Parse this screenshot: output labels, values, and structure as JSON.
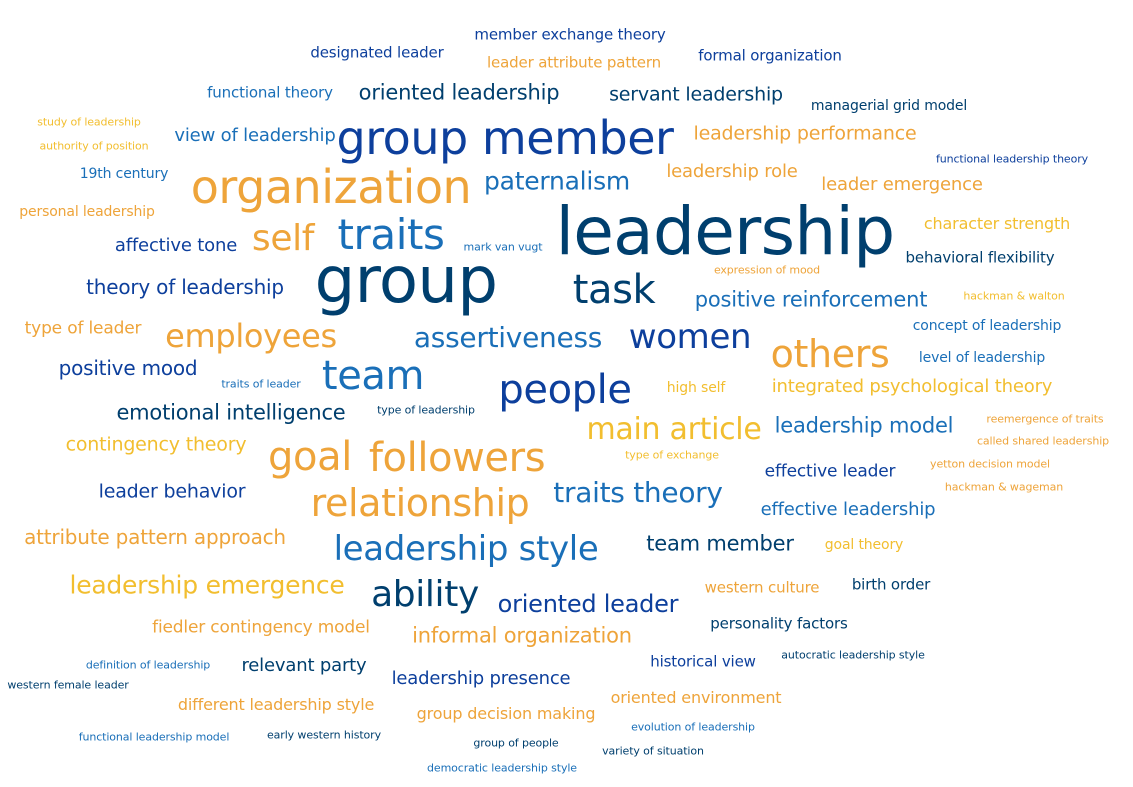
{
  "palette": {
    "navy": "#003f6e",
    "blue": "#0d3f9c",
    "mid_blue": "#1a6fb8",
    "orange": "#eea43a",
    "yellow": "#f2be2f"
  },
  "words": [
    {
      "text": "leadership",
      "color": "navy"
    },
    {
      "text": "group",
      "color": "navy"
    },
    {
      "text": "group member",
      "color": "blue"
    },
    {
      "text": "organization",
      "color": "orange"
    },
    {
      "text": "traits",
      "color": "mid_blue"
    },
    {
      "text": "self",
      "color": "orange"
    },
    {
      "text": "task",
      "color": "navy"
    },
    {
      "text": "others",
      "color": "orange"
    },
    {
      "text": "women",
      "color": "blue"
    },
    {
      "text": "people",
      "color": "blue"
    },
    {
      "text": "team",
      "color": "mid_blue"
    },
    {
      "text": "employees",
      "color": "orange"
    },
    {
      "text": "goal",
      "color": "orange"
    },
    {
      "text": "followers",
      "color": "orange"
    },
    {
      "text": "relationship",
      "color": "orange"
    },
    {
      "text": "leadership style",
      "color": "mid_blue"
    },
    {
      "text": "ability",
      "color": "navy"
    },
    {
      "text": "main article",
      "color": "yellow"
    },
    {
      "text": "traits theory",
      "color": "mid_blue"
    },
    {
      "text": "assertiveness",
      "color": "mid_blue"
    },
    {
      "text": "paternalism",
      "color": "mid_blue"
    },
    {
      "text": "leadership emergence",
      "color": "yellow"
    },
    {
      "text": "oriented leader",
      "color": "blue"
    },
    {
      "text": "positive reinforcement",
      "color": "mid_blue"
    },
    {
      "text": "emotional intelligence",
      "color": "navy"
    },
    {
      "text": "team member",
      "color": "navy"
    },
    {
      "text": "leadership model",
      "color": "mid_blue"
    },
    {
      "text": "attribute pattern approach",
      "color": "orange"
    },
    {
      "text": "oriented leadership",
      "color": "navy"
    },
    {
      "text": "leadership performance",
      "color": "orange"
    },
    {
      "text": "leader emergence",
      "color": "orange"
    },
    {
      "text": "leadership role",
      "color": "orange"
    },
    {
      "text": "theory of leadership",
      "color": "blue"
    },
    {
      "text": "informal organization",
      "color": "orange"
    },
    {
      "text": "positive mood",
      "color": "blue"
    },
    {
      "text": "servant leadership",
      "color": "navy"
    },
    {
      "text": "contingency theory",
      "color": "yellow"
    },
    {
      "text": "leader behavior",
      "color": "blue"
    },
    {
      "text": "integrated psychological theory",
      "color": "yellow"
    },
    {
      "text": "view of leadership",
      "color": "mid_blue"
    },
    {
      "text": "affective tone",
      "color": "blue"
    },
    {
      "text": "fiedler contingency model",
      "color": "orange"
    },
    {
      "text": "leadership presence",
      "color": "blue"
    },
    {
      "text": "effective leadership",
      "color": "mid_blue"
    },
    {
      "text": "effective leader",
      "color": "blue"
    },
    {
      "text": "relevant party",
      "color": "navy"
    },
    {
      "text": "type of leader",
      "color": "orange"
    },
    {
      "text": "different leadership style",
      "color": "orange"
    },
    {
      "text": "group decision making",
      "color": "orange"
    },
    {
      "text": "oriented environment",
      "color": "orange"
    },
    {
      "text": "character strength",
      "color": "yellow"
    },
    {
      "text": "personality factors",
      "color": "navy"
    },
    {
      "text": "western culture",
      "color": "orange"
    },
    {
      "text": "birth order",
      "color": "navy"
    },
    {
      "text": "historical view",
      "color": "blue"
    },
    {
      "text": "behavioral flexibility",
      "color": "navy"
    },
    {
      "text": "designated leader",
      "color": "blue"
    },
    {
      "text": "member exchange theory",
      "color": "blue"
    },
    {
      "text": "formal organization",
      "color": "blue"
    },
    {
      "text": "leader attribute pattern",
      "color": "orange"
    },
    {
      "text": "functional theory",
      "color": "mid_blue"
    },
    {
      "text": "managerial grid model",
      "color": "navy"
    },
    {
      "text": "concept of leadership",
      "color": "mid_blue"
    },
    {
      "text": "level of leadership",
      "color": "mid_blue"
    },
    {
      "text": "19th century",
      "color": "mid_blue"
    },
    {
      "text": "personal leadership",
      "color": "orange"
    },
    {
      "text": "high self",
      "color": "yellow"
    },
    {
      "text": "goal theory",
      "color": "yellow"
    },
    {
      "text": "study of leadership",
      "color": "yellow"
    },
    {
      "text": "authority of position",
      "color": "yellow"
    },
    {
      "text": "functional leadership theory",
      "color": "blue"
    },
    {
      "text": "mark van vugt",
      "color": "mid_blue"
    },
    {
      "text": "expression of mood",
      "color": "orange"
    },
    {
      "text": "hackman & walton",
      "color": "yellow"
    },
    {
      "text": "traits of leader",
      "color": "mid_blue"
    },
    {
      "text": "type of leadership",
      "color": "navy"
    },
    {
      "text": "reemergence of traits",
      "color": "orange"
    },
    {
      "text": "called shared leadership",
      "color": "orange"
    },
    {
      "text": "type of exchange",
      "color": "yellow"
    },
    {
      "text": "yetton decision model",
      "color": "orange"
    },
    {
      "text": "hackman & wageman",
      "color": "orange"
    },
    {
      "text": "definition of leadership",
      "color": "mid_blue"
    },
    {
      "text": "western female leader",
      "color": "navy"
    },
    {
      "text": "autocratic leadership style",
      "color": "navy"
    },
    {
      "text": "functional leadership model",
      "color": "mid_blue"
    },
    {
      "text": "early western history",
      "color": "navy"
    },
    {
      "text": "group of people",
      "color": "navy"
    },
    {
      "text": "evolution of leadership",
      "color": "mid_blue"
    },
    {
      "text": "variety of situation",
      "color": "navy"
    },
    {
      "text": "democratic leadership style",
      "color": "mid_blue"
    }
  ]
}
